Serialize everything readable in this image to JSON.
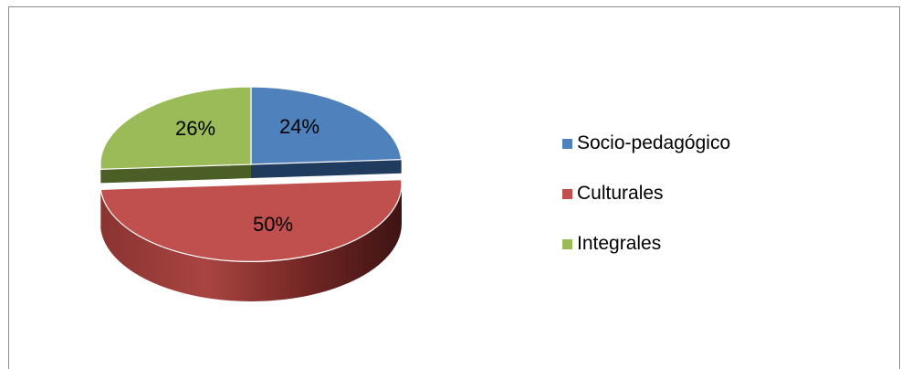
{
  "chart_data": {
    "type": "pie",
    "style": "3d-exploded",
    "categories": [
      "Socio-pedagógico",
      "Culturales",
      "Integrales"
    ],
    "values": [
      24,
      50,
      26
    ],
    "data_labels": [
      "24%",
      "50%",
      "26%"
    ],
    "colors": [
      "#4f81bd",
      "#c0504d",
      "#9bbb59"
    ],
    "legend_position": "right",
    "title": ""
  },
  "legend": {
    "items": [
      {
        "label": "Socio-pedagógico",
        "color": "#4f81bd"
      },
      {
        "label": "Culturales",
        "color": "#c0504d"
      },
      {
        "label": "Integrales",
        "color": "#9bbb59"
      }
    ]
  }
}
